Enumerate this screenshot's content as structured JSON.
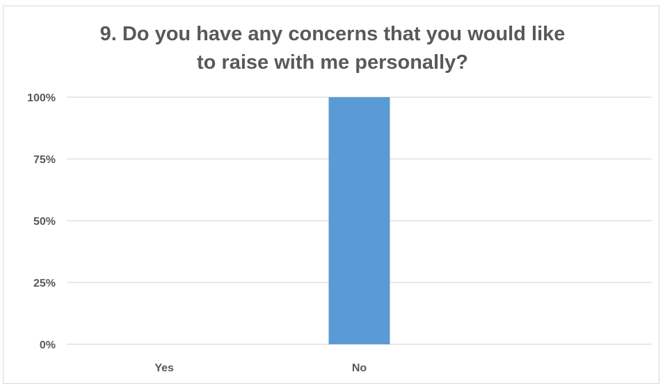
{
  "chart_data": {
    "type": "bar",
    "title_lines": [
      "9. Do you have any concerns that you would like",
      "to raise with me personally?"
    ],
    "categories": [
      "Yes",
      "No",
      ""
    ],
    "values": [
      0,
      100,
      null
    ],
    "y_ticks": [
      "0%",
      "25%",
      "50%",
      "75%",
      "100%"
    ],
    "ylim": [
      0,
      100
    ],
    "grid": true,
    "bar_color": "#5b9bd5",
    "grid_color": "#d9d9d9",
    "text_color": "#595959"
  }
}
